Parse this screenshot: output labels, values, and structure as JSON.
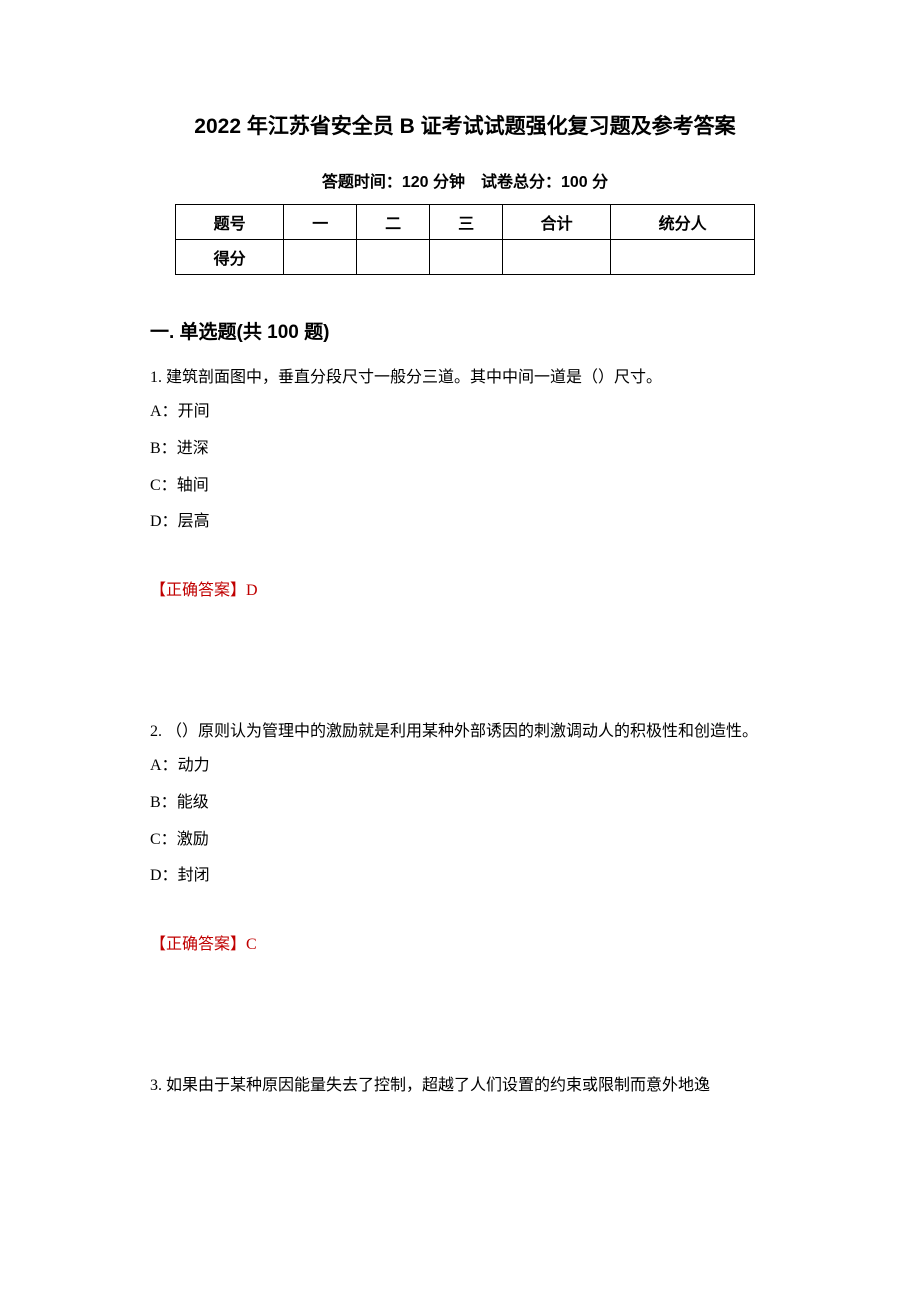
{
  "document": {
    "title": "2022 年江苏省安全员 B 证考试试题强化复习题及参考答案",
    "subtitle": "答题时间：120 分钟　试卷总分：100 分",
    "score_table": {
      "headers": [
        "题号",
        "一",
        "二",
        "三",
        "合计",
        "统分人"
      ],
      "row_label": "得分"
    },
    "section_header": "一. 单选题(共 100 题)",
    "questions": [
      {
        "number": "1.",
        "text": "建筑剖面图中，垂直分段尺寸一般分三道。其中中间一道是（）尺寸。",
        "options": [
          {
            "label": "A：",
            "text": "开间"
          },
          {
            "label": "B：",
            "text": "进深"
          },
          {
            "label": "C：",
            "text": "轴间"
          },
          {
            "label": "D：",
            "text": "层高"
          }
        ],
        "answer_label": "【正确答案】",
        "answer_value": "D"
      },
      {
        "number": "2.",
        "text": "（）原则认为管理中的激励就是利用某种外部诱因的刺激调动人的积极性和创造性。",
        "options": [
          {
            "label": "A：",
            "text": "动力"
          },
          {
            "label": "B：",
            "text": "能级"
          },
          {
            "label": "C：",
            "text": "激励"
          },
          {
            "label": "D：",
            "text": "封闭"
          }
        ],
        "answer_label": "【正确答案】",
        "answer_value": "C"
      },
      {
        "number": "3.",
        "text": "如果由于某种原因能量失去了控制，超越了人们设置的约束或限制而意外地逸"
      }
    ],
    "colors": {
      "text": "#000000",
      "answer": "#c00000",
      "background": "#ffffff",
      "border": "#000000"
    },
    "fonts": {
      "title_size": 21,
      "subtitle_size": 16,
      "section_size": 19,
      "body_size": 16
    }
  }
}
